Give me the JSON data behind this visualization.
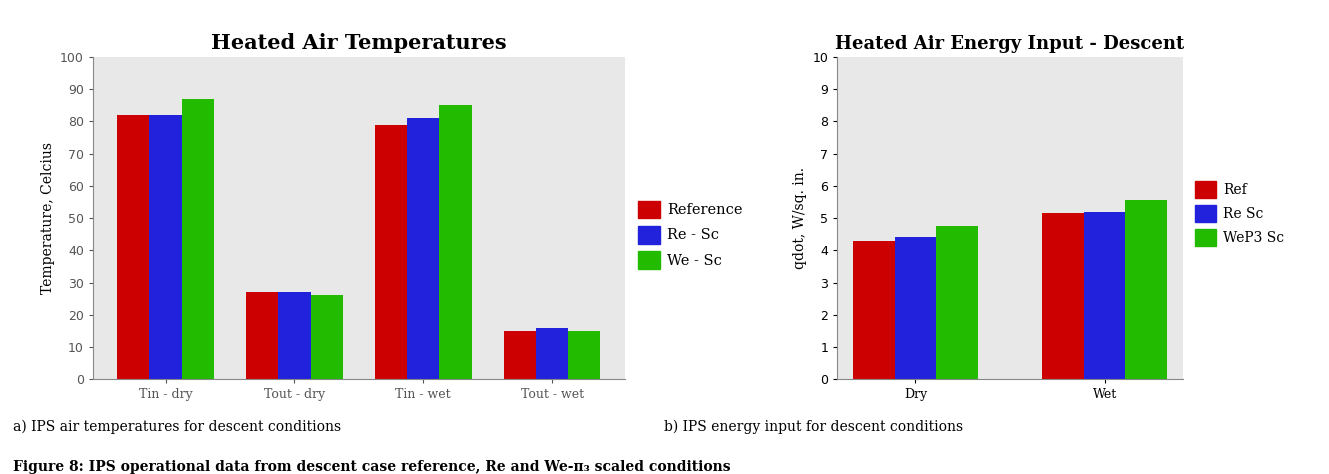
{
  "chart1": {
    "title": "Heated Air Temperatures",
    "ylabel": "Temperature, Celcius",
    "categories": [
      "Tin - dry",
      "Tout - dry",
      "Tin - wet",
      "Tout - wet"
    ],
    "series": {
      "Reference": [
        82,
        27,
        79,
        15
      ],
      "Re - Sc": [
        82,
        27,
        81,
        16
      ],
      "We - Sc": [
        87,
        26,
        85,
        15
      ]
    },
    "colors": {
      "Reference": "#CC0000",
      "Re - Sc": "#2222DD",
      "We - Sc": "#22BB00"
    },
    "ylim": [
      0,
      100
    ],
    "yticks": [
      0,
      10,
      20,
      30,
      40,
      50,
      60,
      70,
      80,
      90,
      100
    ],
    "sublabel": "a) IPS air temperatures for descent conditions"
  },
  "chart2": {
    "title": "Heated Air Energy Input - Descent",
    "ylabel": "qdot, W/sq. in.",
    "categories": [
      "Dry",
      "Wet"
    ],
    "series": {
      "Ref": [
        4.3,
        5.15
      ],
      "Re Sc": [
        4.4,
        5.2
      ],
      "WeP3 Sc": [
        4.75,
        5.55
      ]
    },
    "colors": {
      "Ref": "#CC0000",
      "Re Sc": "#2222DD",
      "WeP3 Sc": "#22BB00"
    },
    "ylim": [
      0,
      10
    ],
    "yticks": [
      0,
      1,
      2,
      3,
      4,
      5,
      6,
      7,
      8,
      9,
      10
    ],
    "sublabel": "b) IPS energy input for descent conditions"
  },
  "figure_caption": "Figure 8: IPS operational data from descent case reference, Re and We-π₃ scaled conditions",
  "bg_color": "#FFFFFF",
  "axes_bg": "#E8E8E8"
}
